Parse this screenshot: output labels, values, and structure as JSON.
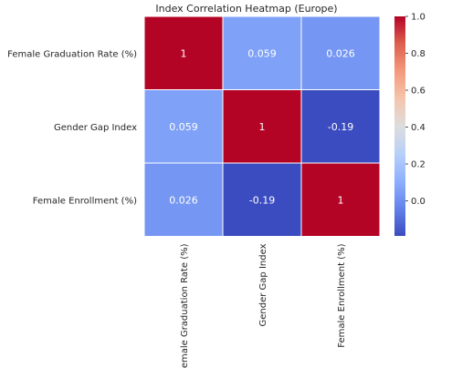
{
  "chart_data": {
    "type": "heatmap",
    "title": "Index Correlation Heatmap (Europe)",
    "row_labels": [
      "Female Graduation Rate (%)",
      "Gender Gap Index",
      "Female Enrollment (%)"
    ],
    "col_labels": [
      "Female Graduation Rate (%)",
      "Gender Gap Index",
      "Female Enrollment (%)"
    ],
    "values": [
      [
        1,
        0.059,
        0.026
      ],
      [
        0.059,
        1,
        -0.19
      ],
      [
        0.026,
        -0.19,
        1
      ]
    ],
    "cell_labels": [
      [
        "1",
        "0.059",
        "0.026"
      ],
      [
        "0.059",
        "1",
        "-0.19"
      ],
      [
        "0.026",
        "-0.19",
        "1"
      ]
    ],
    "colormap": "coolwarm",
    "vmin": -0.19,
    "vmax": 1.0,
    "colorbar_ticks": [
      0.0,
      0.2,
      0.4,
      0.6,
      0.8,
      1.0
    ],
    "colorbar_tick_labels": [
      "0.0",
      "0.2",
      "0.4",
      "0.6",
      "0.8",
      "1.0"
    ],
    "colors": {
      "cell_high": "#b40426",
      "cell_low": "#3b4cc0",
      "text_on_cell": "#ffffff",
      "grid_line": "#ffffff"
    }
  }
}
